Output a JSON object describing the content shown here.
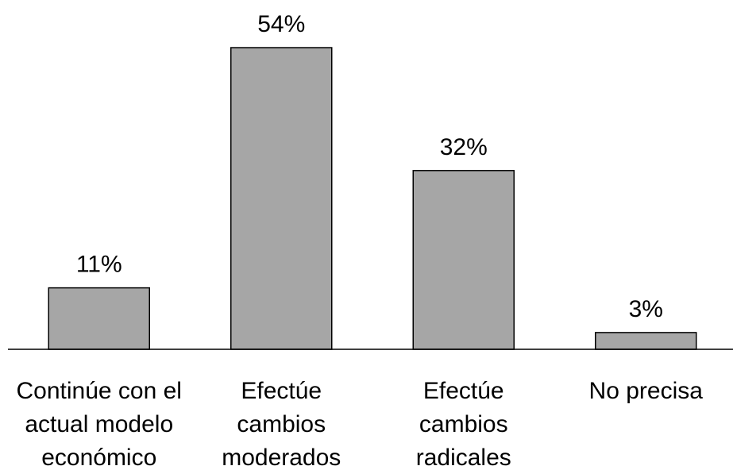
{
  "chart_data": {
    "type": "bar",
    "categories": [
      [
        "Continúe con el",
        "actual modelo",
        "económico"
      ],
      [
        "Efectúe",
        "cambios",
        "moderados"
      ],
      [
        "Efectúe",
        "cambios",
        "radicales"
      ],
      [
        "No precisa"
      ]
    ],
    "values": [
      11,
      54,
      32,
      3
    ],
    "value_labels": [
      "11%",
      "54%",
      "32%",
      "3%"
    ],
    "unit": "%",
    "title": "",
    "xlabel": "",
    "ylabel": "",
    "ylim": [
      0,
      54
    ],
    "grid": false,
    "legend": "none",
    "colors": {
      "bar_fill": "#a6a6a6",
      "bar_stroke": "#000000",
      "axis": "#000000",
      "text": "#000000"
    }
  }
}
